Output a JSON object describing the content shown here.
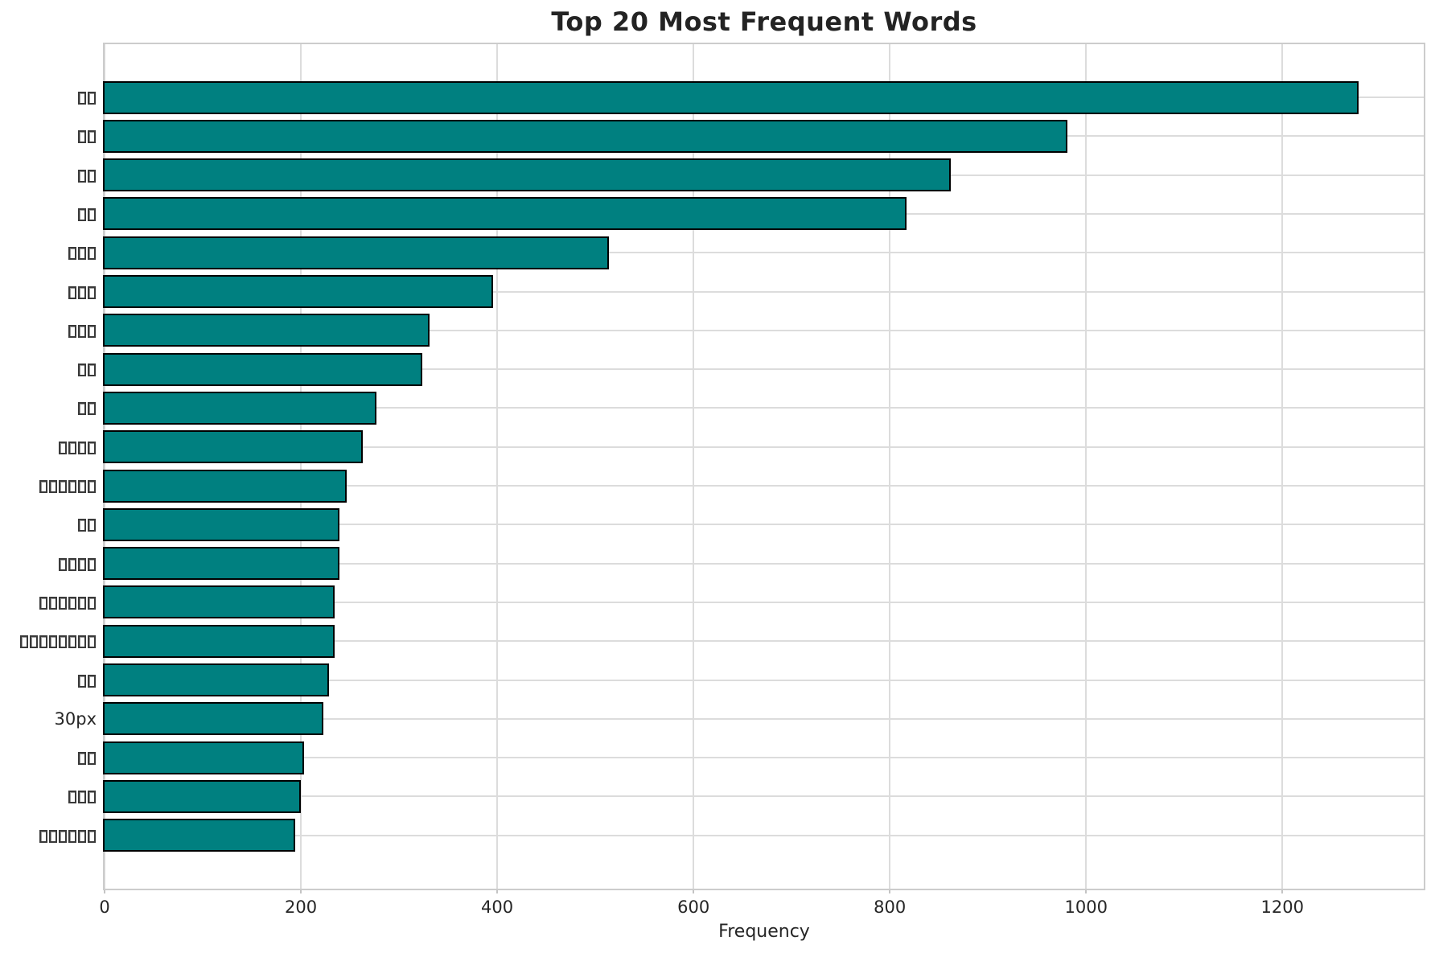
{
  "chart_data": {
    "type": "bar",
    "orientation": "horizontal",
    "title": "Top 20 Most Frequent Words",
    "xlabel": "Frequency",
    "ylabel": "",
    "xlim": [
      0,
      1344
    ],
    "xticks": [
      0,
      200,
      400,
      600,
      800,
      1000,
      1200
    ],
    "grid": true,
    "legend": false,
    "bar_color": "#008080",
    "bar_edge_color": "#000000",
    "note": "y tick labels are CJK words rendered as missing-glyph (tofu) boxes, except the literal label 30px",
    "categories": [
      "□□",
      "□□",
      "□□",
      "□□",
      "□□□",
      "□□□",
      "□□□",
      "□□",
      "□□",
      "□□□□",
      "□□□□□□",
      "□□",
      "□□□□",
      "□□□□□□",
      "□□□□□□□□",
      "□□",
      "30px",
      "□□",
      "□□□",
      "□□□□□□"
    ],
    "values": [
      1278,
      981,
      862,
      817,
      514,
      396,
      331,
      324,
      277,
      263,
      247,
      239,
      239,
      234,
      234,
      229,
      223,
      203,
      200,
      194
    ]
  }
}
